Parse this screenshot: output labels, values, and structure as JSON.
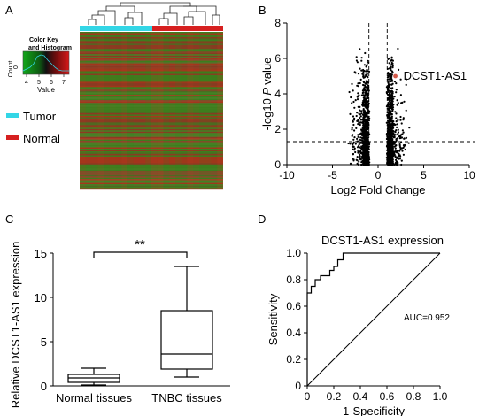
{
  "panels": {
    "a": "A",
    "b": "B",
    "c": "C",
    "d": "D"
  },
  "colors": {
    "tumor": "#33d6e6",
    "normal": "#d62020",
    "green": "#2b8a1c",
    "red": "#b0271c"
  },
  "heatmap": {
    "color_key_title": "Color Key",
    "color_key_subtitle": "and Histogram",
    "count_label": "Count",
    "count_zero": "0",
    "value_label": "Value",
    "key_ticks": [
      "4",
      "5",
      "6",
      "7"
    ],
    "legend": [
      {
        "label": "Tumor",
        "color": "#33d6e6"
      },
      {
        "label": "Normal",
        "color": "#d62020"
      }
    ]
  },
  "chart_data": [
    {
      "id": "B",
      "type": "scatter",
      "xlabel": "Log2 Fold Change",
      "ylabel": "-log10 P value",
      "xlim": [
        -10,
        10
      ],
      "ylim": [
        0,
        8
      ],
      "xticks": [
        "-10",
        "-5",
        "0",
        "5",
        "10"
      ],
      "yticks": [
        "0",
        "2",
        "4",
        "6",
        "8"
      ],
      "thresholds": {
        "x": [
          -1,
          1
        ],
        "y": 1.3
      },
      "highlight": {
        "label": "DCST1-AS1",
        "x": 1.9,
        "y": 5.0
      }
    },
    {
      "id": "C",
      "type": "box",
      "ylabel": "Relative DCST1-AS1 expression",
      "ylim": [
        0,
        15
      ],
      "yticks": [
        "0",
        "5",
        "10",
        "15"
      ],
      "categories": [
        "Normal  tissues",
        "TNBC tissues"
      ],
      "boxes": [
        {
          "min": 0.1,
          "q1": 0.4,
          "median": 0.9,
          "q3": 1.3,
          "max": 2.0
        },
        {
          "min": 1.0,
          "q1": 1.9,
          "median": 3.6,
          "q3": 8.5,
          "max": 13.5
        }
      ],
      "significance": "**"
    },
    {
      "id": "D",
      "type": "line",
      "title": "DCST1-AS1 expression",
      "xlabel": "1-Specificity",
      "ylabel": "Sensitivity",
      "xlim": [
        0,
        1.0
      ],
      "ylim": [
        0,
        1.0
      ],
      "xticks": [
        "0",
        "0.2",
        "0.4",
        "0.6",
        "0.8",
        "1.0"
      ],
      "yticks": [
        "0",
        "0.2",
        "0.4",
        "0.6",
        "0.8",
        "1.0"
      ],
      "annotation": "AUC=0.952",
      "roc": [
        [
          0,
          0
        ],
        [
          0,
          0.7
        ],
        [
          0.03,
          0.7
        ],
        [
          0.03,
          0.75
        ],
        [
          0.06,
          0.75
        ],
        [
          0.06,
          0.8
        ],
        [
          0.1,
          0.8
        ],
        [
          0.1,
          0.83
        ],
        [
          0.17,
          0.83
        ],
        [
          0.17,
          0.87
        ],
        [
          0.2,
          0.87
        ],
        [
          0.2,
          0.9
        ],
        [
          0.23,
          0.9
        ],
        [
          0.23,
          0.95
        ],
        [
          0.27,
          0.95
        ],
        [
          0.27,
          1.0
        ],
        [
          1.0,
          1.0
        ]
      ],
      "reference": [
        [
          0,
          0
        ],
        [
          1.0,
          1.0
        ]
      ]
    }
  ]
}
